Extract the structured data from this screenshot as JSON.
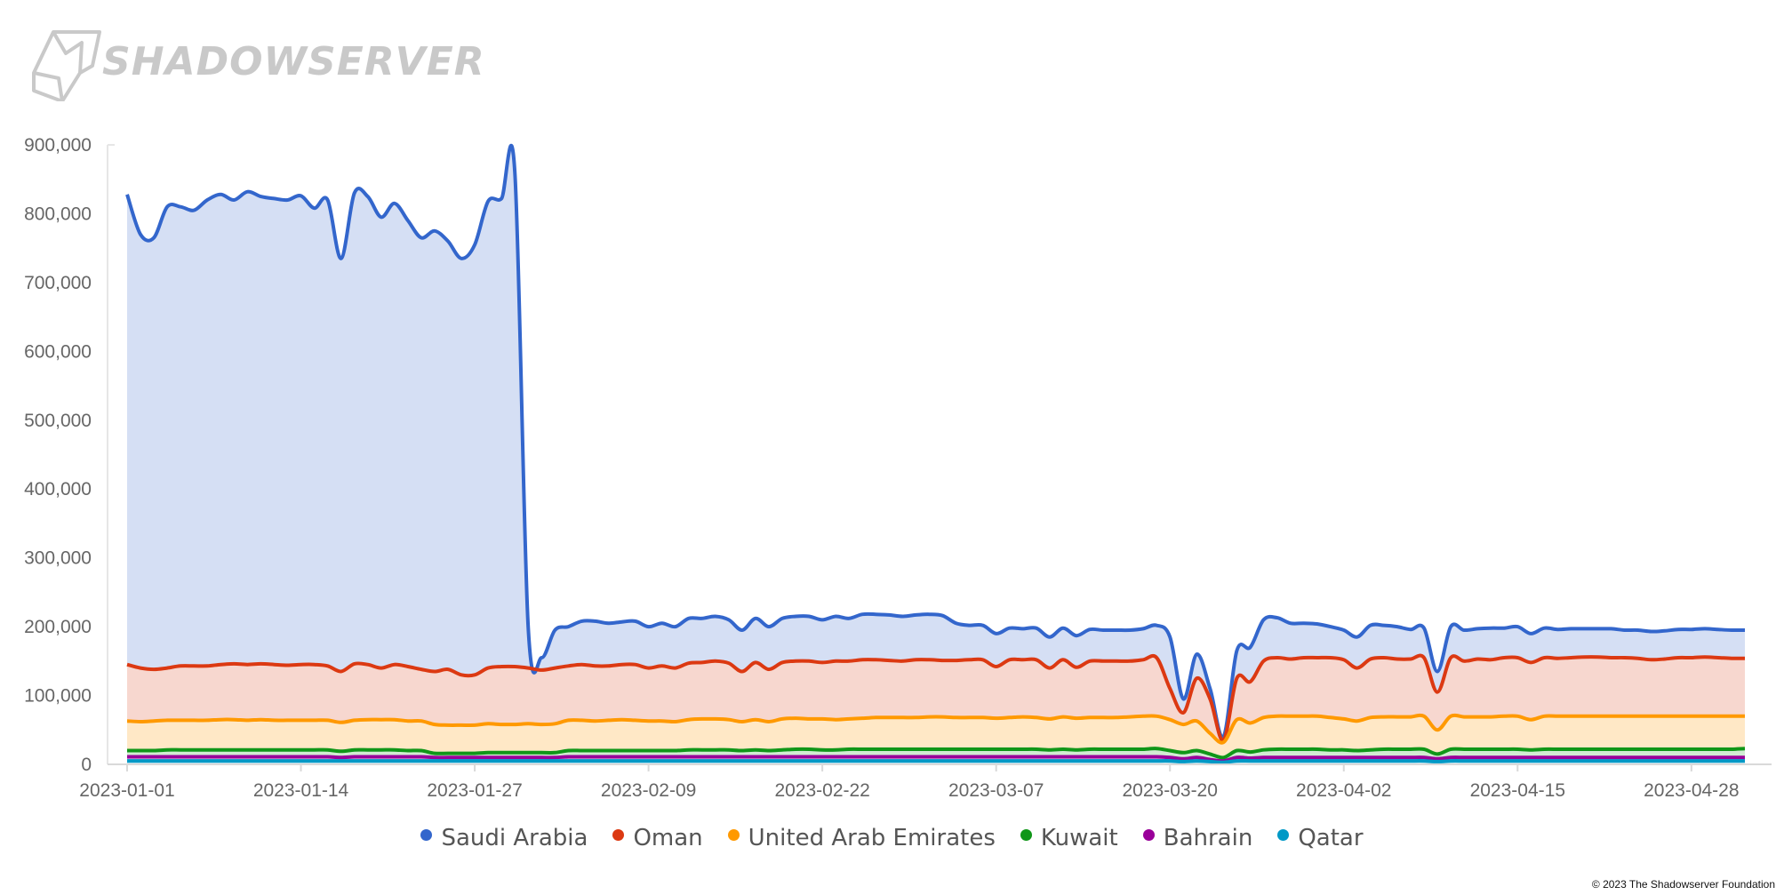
{
  "brand": {
    "name": "SHADOWSERVER",
    "logo_icon": "shadowserver-logo-icon"
  },
  "copyright": "© 2023 The Shadowserver Foundation",
  "chart_data": {
    "type": "area",
    "title": "",
    "xlabel": "",
    "ylabel": "",
    "ylim": [
      0,
      900000
    ],
    "y_ticks": [
      0,
      100000,
      200000,
      300000,
      400000,
      500000,
      600000,
      700000,
      800000,
      900000
    ],
    "y_tick_labels": [
      "0",
      "100,000",
      "200,000",
      "300,000",
      "400,000",
      "500,000",
      "600,000",
      "700,000",
      "800,000",
      "900,000"
    ],
    "x_tick_labels": [
      "2023-01-01",
      "2023-01-14",
      "2023-01-27",
      "2023-02-09",
      "2023-02-22",
      "2023-03-07",
      "2023-03-20",
      "2023-04-02",
      "2023-04-15",
      "2023-04-28"
    ],
    "x_start": "2023-01-01",
    "grid": false,
    "legend_position": "bottom",
    "series": [
      {
        "name": "Saudi Arabia",
        "color": "#3366cc",
        "fill": "#d5dff4",
        "values": [
          828000,
          770000,
          765000,
          810000,
          810000,
          805000,
          820000,
          828000,
          820000,
          832000,
          825000,
          822000,
          820000,
          826000,
          808000,
          820000,
          735000,
          830000,
          825000,
          795000,
          815000,
          790000,
          765000,
          775000,
          760000,
          735000,
          755000,
          818000,
          822000,
          860000,
          200000,
          155000,
          195000,
          200000,
          208000,
          208000,
          205000,
          207000,
          208000,
          200000,
          205000,
          200000,
          212000,
          212000,
          215000,
          210000,
          195000,
          212000,
          200000,
          212000,
          215000,
          215000,
          210000,
          215000,
          212000,
          218000,
          218000,
          217000,
          215000,
          217000,
          218000,
          216000,
          205000,
          202000,
          202000,
          190000,
          198000,
          197000,
          198000,
          185000,
          198000,
          187000,
          196000,
          195000,
          195000,
          195000,
          197000,
          202000,
          185000,
          95000,
          160000,
          110000,
          40000,
          165000,
          170000,
          210000,
          213000,
          205000,
          205000,
          204000,
          200000,
          195000,
          185000,
          202000,
          202000,
          200000,
          196000,
          198000,
          135000,
          200000,
          195000,
          197000,
          198000,
          198000,
          200000,
          190000,
          198000,
          196000,
          197000,
          197000,
          197000,
          197000,
          195000,
          195000,
          193000,
          194000,
          196000,
          196000,
          197000,
          196000,
          195000,
          195000
        ]
      },
      {
        "name": "Oman",
        "color": "#dc3912",
        "fill": "#f7d7cf",
        "values": [
          145000,
          140000,
          138000,
          140000,
          143000,
          143000,
          143000,
          145000,
          146000,
          145000,
          146000,
          145000,
          144000,
          145000,
          145000,
          143000,
          135000,
          146000,
          145000,
          140000,
          145000,
          142000,
          138000,
          135000,
          138000,
          130000,
          130000,
          140000,
          142000,
          142000,
          140000,
          137000,
          140000,
          143000,
          145000,
          143000,
          143000,
          145000,
          145000,
          140000,
          143000,
          140000,
          147000,
          148000,
          150000,
          147000,
          135000,
          148000,
          138000,
          148000,
          150000,
          150000,
          148000,
          150000,
          150000,
          152000,
          152000,
          151000,
          150000,
          152000,
          152000,
          151000,
          151000,
          152000,
          152000,
          142000,
          152000,
          152000,
          152000,
          140000,
          152000,
          141000,
          150000,
          150000,
          150000,
          150000,
          152000,
          155000,
          110000,
          75000,
          125000,
          95000,
          35000,
          125000,
          120000,
          150000,
          155000,
          153000,
          155000,
          155000,
          155000,
          152000,
          140000,
          153000,
          155000,
          153000,
          153000,
          155000,
          105000,
          155000,
          150000,
          153000,
          152000,
          155000,
          155000,
          148000,
          155000,
          154000,
          155000,
          156000,
          156000,
          155000,
          155000,
          154000,
          152000,
          153000,
          155000,
          155000,
          156000,
          155000,
          154000,
          154000
        ]
      },
      {
        "name": "United Arab Emirates",
        "color": "#ff9900",
        "fill": "#ffe8c6",
        "values": [
          63000,
          62000,
          63000,
          64000,
          64000,
          64000,
          64000,
          65000,
          65000,
          64000,
          65000,
          64000,
          64000,
          64000,
          64000,
          64000,
          61000,
          64000,
          65000,
          65000,
          65000,
          63000,
          63000,
          58000,
          57000,
          57000,
          57000,
          59000,
          58000,
          58000,
          59000,
          58000,
          59000,
          64000,
          64000,
          63000,
          64000,
          65000,
          64000,
          63000,
          63000,
          62000,
          65000,
          66000,
          66000,
          65000,
          62000,
          65000,
          62000,
          66000,
          67000,
          66000,
          66000,
          65000,
          66000,
          67000,
          68000,
          68000,
          68000,
          68000,
          69000,
          69000,
          68000,
          68000,
          68000,
          67000,
          68000,
          69000,
          68000,
          66000,
          69000,
          67000,
          68000,
          68000,
          68000,
          69000,
          70000,
          70000,
          65000,
          58000,
          63000,
          45000,
          32000,
          65000,
          60000,
          68000,
          70000,
          70000,
          70000,
          70000,
          68000,
          66000,
          63000,
          68000,
          69000,
          69000,
          69000,
          70000,
          50000,
          70000,
          69000,
          69000,
          69000,
          70000,
          70000,
          65000,
          70000,
          70000,
          70000,
          70000,
          70000,
          70000,
          70000,
          70000,
          70000,
          70000,
          70000,
          70000,
          70000,
          70000,
          70000,
          70000
        ]
      },
      {
        "name": "Kuwait",
        "color": "#109618",
        "fill": "#d2ecd3",
        "values": [
          20000,
          20000,
          20000,
          21000,
          21000,
          21000,
          21000,
          21000,
          21000,
          21000,
          21000,
          21000,
          21000,
          21000,
          21000,
          21000,
          19000,
          21000,
          21000,
          21000,
          21000,
          20000,
          20000,
          16000,
          16000,
          16000,
          16000,
          17000,
          17000,
          17000,
          17000,
          17000,
          17000,
          20000,
          20000,
          20000,
          20000,
          20000,
          20000,
          20000,
          20000,
          20000,
          21000,
          21000,
          21000,
          21000,
          20000,
          21000,
          20000,
          21000,
          22000,
          22000,
          21000,
          21000,
          22000,
          22000,
          22000,
          22000,
          22000,
          22000,
          22000,
          22000,
          22000,
          22000,
          22000,
          22000,
          22000,
          22000,
          22000,
          21000,
          22000,
          21000,
          22000,
          22000,
          22000,
          22000,
          22000,
          23000,
          20000,
          17000,
          20000,
          15000,
          10000,
          20000,
          18000,
          21000,
          22000,
          22000,
          22000,
          22000,
          21000,
          21000,
          20000,
          21000,
          22000,
          22000,
          22000,
          22000,
          15000,
          22000,
          22000,
          22000,
          22000,
          22000,
          22000,
          21000,
          22000,
          22000,
          22000,
          22000,
          22000,
          22000,
          22000,
          22000,
          22000,
          22000,
          22000,
          22000,
          22000,
          22000,
          22000,
          23000
        ]
      },
      {
        "name": "Bahrain",
        "color": "#990099",
        "fill": "#ebd0eb",
        "values": [
          11000,
          11000,
          11000,
          11000,
          11000,
          11000,
          11000,
          11000,
          11000,
          11000,
          11000,
          11000,
          11000,
          11000,
          11000,
          11000,
          10000,
          11000,
          11000,
          11000,
          11000,
          11000,
          11000,
          10000,
          10000,
          10000,
          10000,
          10000,
          10000,
          10000,
          10000,
          10000,
          10000,
          11000,
          11000,
          11000,
          11000,
          11000,
          11000,
          11000,
          11000,
          11000,
          11000,
          11000,
          11000,
          11000,
          11000,
          11000,
          11000,
          11000,
          11000,
          11000,
          11000,
          11000,
          11000,
          11000,
          11000,
          11000,
          11000,
          11000,
          11000,
          11000,
          11000,
          11000,
          11000,
          11000,
          11000,
          11000,
          11000,
          11000,
          11000,
          11000,
          11000,
          11000,
          11000,
          11000,
          11000,
          11000,
          10000,
          8000,
          10000,
          7000,
          5000,
          10000,
          9000,
          10000,
          10000,
          10000,
          10000,
          10000,
          10000,
          10000,
          10000,
          10000,
          10000,
          10000,
          10000,
          10000,
          8000,
          10000,
          10000,
          10000,
          10000,
          10000,
          10000,
          10000,
          10000,
          10000,
          10000,
          10000,
          10000,
          10000,
          10000,
          10000,
          10000,
          10000,
          10000,
          10000,
          10000,
          10000,
          10000,
          10000
        ]
      },
      {
        "name": "Qatar",
        "color": "#0099c6",
        "fill": "#cce9f3",
        "values": [
          5000,
          5000,
          5000,
          5000,
          5000,
          5000,
          5000,
          5000,
          5000,
          5000,
          5000,
          5000,
          5000,
          5000,
          5000,
          5000,
          5000,
          5000,
          5000,
          5000,
          5000,
          5000,
          5000,
          5000,
          5000,
          5000,
          5000,
          5000,
          5000,
          5000,
          5000,
          5000,
          5000,
          5000,
          5000,
          5000,
          5000,
          5000,
          5000,
          5000,
          5000,
          5000,
          5000,
          5000,
          5000,
          5000,
          5000,
          5000,
          5000,
          5000,
          5000,
          5000,
          5000,
          5000,
          5000,
          5000,
          5000,
          5000,
          5000,
          5000,
          5000,
          5000,
          5000,
          5000,
          5000,
          5000,
          5000,
          5000,
          5000,
          5000,
          5000,
          5000,
          5000,
          5000,
          5000,
          5000,
          5000,
          5000,
          5000,
          4000,
          5000,
          4000,
          3000,
          5000,
          5000,
          5000,
          5000,
          5000,
          5000,
          5000,
          5000,
          5000,
          5000,
          5000,
          5000,
          5000,
          5000,
          5000,
          4000,
          5000,
          5000,
          5000,
          5000,
          5000,
          5000,
          5000,
          5000,
          5000,
          5000,
          5000,
          5000,
          5000,
          5000,
          5000,
          5000,
          5000,
          5000,
          5000,
          5000,
          5000,
          5000,
          5000
        ]
      }
    ]
  }
}
